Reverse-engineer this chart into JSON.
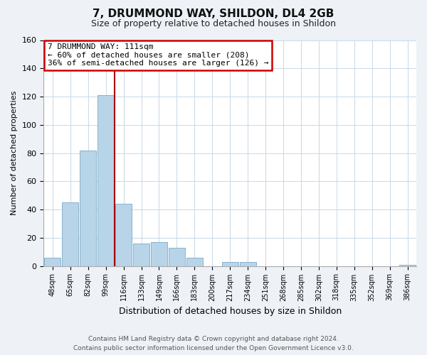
{
  "title": "7, DRUMMOND WAY, SHILDON, DL4 2GB",
  "subtitle": "Size of property relative to detached houses in Shildon",
  "xlabel": "Distribution of detached houses by size in Shildon",
  "ylabel": "Number of detached properties",
  "bar_labels": [
    "48sqm",
    "65sqm",
    "82sqm",
    "99sqm",
    "116sqm",
    "133sqm",
    "149sqm",
    "166sqm",
    "183sqm",
    "200sqm",
    "217sqm",
    "234sqm",
    "251sqm",
    "268sqm",
    "285sqm",
    "302sqm",
    "318sqm",
    "335sqm",
    "352sqm",
    "369sqm",
    "386sqm"
  ],
  "bar_values": [
    6,
    45,
    82,
    121,
    44,
    16,
    17,
    13,
    6,
    0,
    3,
    3,
    0,
    0,
    0,
    0,
    0,
    0,
    0,
    0,
    1
  ],
  "bar_color": "#b8d4e8",
  "bar_edge_color": "#7aaac8",
  "annotation_line1": "7 DRUMMOND WAY: 111sqm",
  "annotation_line2": "← 60% of detached houses are smaller (208)",
  "annotation_line3": "36% of semi-detached houses are larger (126) →",
  "vline_color": "#aa0000",
  "box_edge_color": "#cc0000",
  "ylim": [
    0,
    160
  ],
  "yticks": [
    0,
    20,
    40,
    60,
    80,
    100,
    120,
    140,
    160
  ],
  "footer_line1": "Contains HM Land Registry data © Crown copyright and database right 2024.",
  "footer_line2": "Contains public sector information licensed under the Open Government Licence v3.0.",
  "bg_color": "#eef2f7",
  "plot_bg_color": "#ffffff",
  "grid_color": "#c8d8e8"
}
